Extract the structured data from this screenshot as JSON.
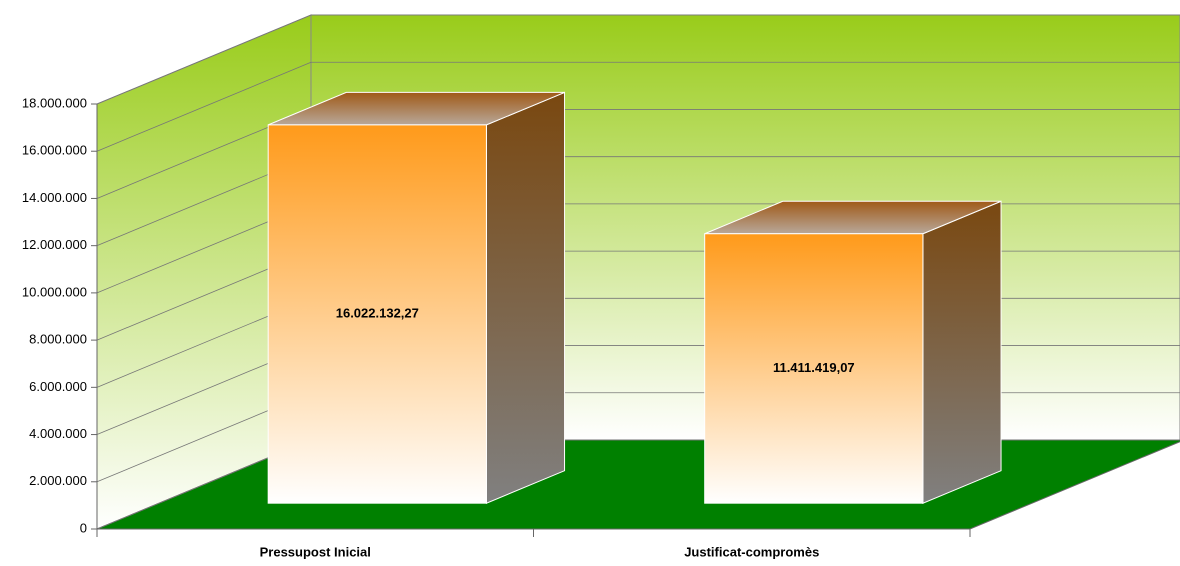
{
  "chart_data": {
    "type": "bar3d",
    "categories": [
      "Pressupost Inicial",
      "Justificat-compromès"
    ],
    "values": [
      16022132.27,
      11411419.07
    ],
    "value_labels": [
      "16.022.132,27",
      "11.411.419,07"
    ],
    "ylim": [
      0,
      18000000
    ],
    "yticks": [
      0,
      {
        "value": 2000000,
        "label": "2.000.000"
      },
      {
        "value": 4000000,
        "label": "4.000.000"
      },
      {
        "value": 6000000,
        "label": "6.000.000"
      },
      {
        "value": 8000000,
        "label": "8.000.000"
      },
      {
        "value": 10000000,
        "label": "10.000.000"
      },
      {
        "value": 12000000,
        "label": "12.000.000"
      },
      {
        "value": 14000000,
        "label": "14.000.000"
      },
      {
        "value": 16000000,
        "label": "16.000.000"
      },
      {
        "value": 18000000,
        "label": "18.000.000"
      }
    ],
    "grid": true,
    "color": "#ff9a1a"
  }
}
